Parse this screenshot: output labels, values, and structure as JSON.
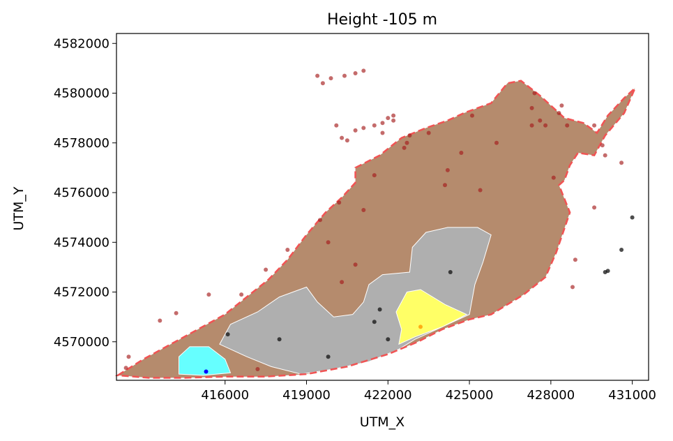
{
  "chart_data": {
    "type": "map",
    "title": "Height -105 m",
    "xlabel": "UTM_X",
    "ylabel": "UTM_Y",
    "xlim": [
      412000,
      431600
    ],
    "ylim": [
      4568450,
      4582400
    ],
    "xticks": [
      416000,
      419000,
      422000,
      425000,
      428000,
      431000
    ],
    "yticks": [
      4570000,
      4572000,
      4574000,
      4576000,
      4578000,
      4580000,
      4582000
    ],
    "grid": false,
    "colors": {
      "main_region": "#b58b6d",
      "gray_zone": "#afafaf",
      "yellow_zone": "#ffff66",
      "cyan_zone": "#66ffff",
      "boundary": "#f05454",
      "red_points": "#a51c1c",
      "black_points": "#111111"
    },
    "zones": [
      {
        "name": "main-region",
        "fill": "#b58b6d",
        "coords": [
          [
            412050,
            4568650
          ],
          [
            413000,
            4569300
          ],
          [
            414000,
            4569900
          ],
          [
            415000,
            4570500
          ],
          [
            416000,
            4571100
          ],
          [
            416800,
            4571800
          ],
          [
            417600,
            4572500
          ],
          [
            418300,
            4573300
          ],
          [
            419000,
            4574300
          ],
          [
            419700,
            4575200
          ],
          [
            420300,
            4575800
          ],
          [
            420800,
            4576400
          ],
          [
            420800,
            4577000
          ],
          [
            421700,
            4577500
          ],
          [
            422500,
            4578200
          ],
          [
            423400,
            4578600
          ],
          [
            424200,
            4578900
          ],
          [
            424800,
            4579200
          ],
          [
            425800,
            4579600
          ],
          [
            426400,
            4580400
          ],
          [
            426900,
            4580500
          ],
          [
            427600,
            4579900
          ],
          [
            428500,
            4579000
          ],
          [
            429200,
            4578800
          ],
          [
            429700,
            4578400
          ],
          [
            430100,
            4579100
          ],
          [
            430700,
            4579800
          ],
          [
            431100,
            4580200
          ],
          [
            430700,
            4579200
          ],
          [
            430000,
            4578300
          ],
          [
            429600,
            4577500
          ],
          [
            429000,
            4577600
          ],
          [
            428700,
            4577100
          ],
          [
            428500,
            4576500
          ],
          [
            428300,
            4576300
          ],
          [
            428700,
            4575200
          ],
          [
            428200,
            4573600
          ],
          [
            427800,
            4572600
          ],
          [
            427000,
            4571900
          ],
          [
            425800,
            4571100
          ],
          [
            425000,
            4570900
          ],
          [
            424000,
            4570500
          ],
          [
            423100,
            4570000
          ],
          [
            422000,
            4569500
          ],
          [
            420500,
            4569000
          ],
          [
            419000,
            4568700
          ],
          [
            417500,
            4568600
          ],
          [
            416000,
            4568600
          ],
          [
            414500,
            4568550
          ],
          [
            413200,
            4568550
          ],
          [
            412050,
            4568650
          ]
        ]
      },
      {
        "name": "gray-zone",
        "fill": "#afafaf",
        "coords": [
          [
            415800,
            4569900
          ],
          [
            416200,
            4570700
          ],
          [
            417200,
            4571200
          ],
          [
            418000,
            4571800
          ],
          [
            419000,
            4572200
          ],
          [
            419400,
            4571600
          ],
          [
            420000,
            4571000
          ],
          [
            420700,
            4571100
          ],
          [
            421100,
            4571600
          ],
          [
            421300,
            4572300
          ],
          [
            421800,
            4572700
          ],
          [
            422800,
            4572800
          ],
          [
            422900,
            4573800
          ],
          [
            423400,
            4574400
          ],
          [
            424200,
            4574600
          ],
          [
            425300,
            4574600
          ],
          [
            425800,
            4574300
          ],
          [
            425500,
            4573200
          ],
          [
            425200,
            4572300
          ],
          [
            425000,
            4571100
          ],
          [
            424000,
            4570600
          ],
          [
            423000,
            4570100
          ],
          [
            422400,
            4569700
          ],
          [
            421300,
            4569200
          ],
          [
            420000,
            4568900
          ],
          [
            418800,
            4568700
          ],
          [
            417700,
            4569000
          ],
          [
            416800,
            4569400
          ],
          [
            415800,
            4569900
          ]
        ]
      },
      {
        "name": "yellow-zone",
        "fill": "#ffff66",
        "coords": [
          [
            422400,
            4569900
          ],
          [
            422500,
            4570500
          ],
          [
            422300,
            4571200
          ],
          [
            422700,
            4572000
          ],
          [
            423200,
            4572100
          ],
          [
            424100,
            4571500
          ],
          [
            424900,
            4571100
          ],
          [
            424000,
            4570600
          ],
          [
            423000,
            4570200
          ],
          [
            422400,
            4569900
          ]
        ]
      },
      {
        "name": "cyan-zone",
        "fill": "#66ffff",
        "coords": [
          [
            414300,
            4568700
          ],
          [
            414300,
            4569400
          ],
          [
            414700,
            4569800
          ],
          [
            415400,
            4569800
          ],
          [
            416000,
            4569300
          ],
          [
            416200,
            4568750
          ],
          [
            415200,
            4568650
          ],
          [
            414300,
            4568700
          ]
        ]
      }
    ],
    "red_points": [
      [
        412450,
        4569400
      ],
      [
        412350,
        4568950
      ],
      [
        413600,
        4570850
      ],
      [
        414200,
        4571150
      ],
      [
        415400,
        4571900
      ],
      [
        416600,
        4571900
      ],
      [
        417200,
        4568900
      ],
      [
        417500,
        4572900
      ],
      [
        418300,
        4573700
      ],
      [
        419500,
        4574900
      ],
      [
        419800,
        4574000
      ],
      [
        420200,
        4575600
      ],
      [
        420300,
        4572400
      ],
      [
        420800,
        4573100
      ],
      [
        421100,
        4575300
      ],
      [
        421500,
        4576700
      ],
      [
        421500,
        4578700
      ],
      [
        421800,
        4578400
      ],
      [
        422000,
        4579000
      ],
      [
        422200,
        4579100
      ],
      [
        422600,
        4577800
      ],
      [
        422700,
        4578000
      ],
      [
        423500,
        4578400
      ],
      [
        424200,
        4576900
      ],
      [
        424100,
        4576300
      ],
      [
        424700,
        4577600
      ],
      [
        425100,
        4579100
      ],
      [
        425400,
        4576100
      ],
      [
        426000,
        4578000
      ],
      [
        427300,
        4579400
      ],
      [
        427300,
        4578700
      ],
      [
        427400,
        4580000
      ],
      [
        427600,
        4578900
      ],
      [
        427800,
        4578700
      ],
      [
        428300,
        4579200
      ],
      [
        428400,
        4579500
      ],
      [
        428600,
        4578700
      ],
      [
        428100,
        4576600
      ],
      [
        428800,
        4572200
      ],
      [
        428900,
        4573300
      ],
      [
        429600,
        4578700
      ],
      [
        429900,
        4577900
      ],
      [
        430000,
        4577500
      ],
      [
        430600,
        4577200
      ],
      [
        429600,
        4575400
      ],
      [
        419400,
        4580700
      ],
      [
        419600,
        4580400
      ],
      [
        419900,
        4580600
      ],
      [
        420400,
        4580700
      ],
      [
        420800,
        4580800
      ],
      [
        421100,
        4580900
      ],
      [
        420100,
        4578700
      ],
      [
        420300,
        4578200
      ],
      [
        420500,
        4578100
      ],
      [
        420800,
        4578500
      ],
      [
        421100,
        4578600
      ],
      [
        421800,
        4578800
      ],
      [
        422200,
        4578900
      ],
      [
        422800,
        4578300
      ]
    ],
    "black_points": [
      [
        416100,
        4570300
      ],
      [
        418000,
        4570100
      ],
      [
        419800,
        4569400
      ],
      [
        421500,
        4570800
      ],
      [
        421700,
        4571300
      ],
      [
        422000,
        4570100
      ],
      [
        424300,
        4572800
      ],
      [
        430000,
        4572800
      ],
      [
        430100,
        4572850
      ],
      [
        430600,
        4573700
      ],
      [
        431000,
        4575000
      ]
    ],
    "blue_points": [
      [
        415300,
        4568800
      ]
    ],
    "orange_points": [
      [
        423200,
        4570600
      ]
    ]
  }
}
